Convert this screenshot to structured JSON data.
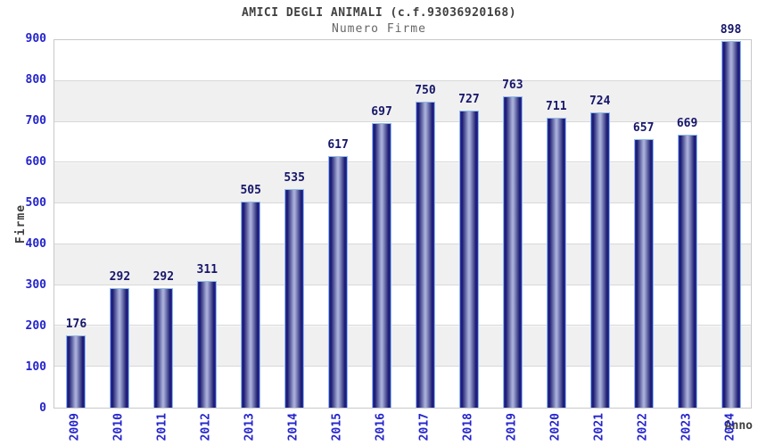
{
  "chart_data": {
    "type": "bar",
    "title": "AMICI DEGLI ANIMALI (c.f.93036920168)",
    "subtitle": "Numero Firme",
    "xlabel": "Anno",
    "ylabel": "Firme",
    "categories": [
      "2009",
      "2010",
      "2011",
      "2012",
      "2013",
      "2014",
      "2015",
      "2016",
      "2017",
      "2018",
      "2019",
      "2020",
      "2021",
      "2022",
      "2023",
      "2024"
    ],
    "values": [
      176,
      292,
      292,
      311,
      505,
      535,
      617,
      697,
      750,
      727,
      763,
      711,
      724,
      657,
      669,
      898
    ],
    "ylim": [
      0,
      900
    ],
    "ytick_step": 100,
    "grid": true,
    "legend_position": "none",
    "band_colors": [
      "#ffffff",
      "#f0f0f0"
    ],
    "colors": {
      "bar_edge": "#17176d",
      "bar_center": "#a7aed8",
      "bar_outline": "#8fbbe8",
      "axis_tick_label": "#2424cc",
      "value_label": "#16166a",
      "title": "#404040",
      "subtitle": "#666666",
      "gridline": "#d8d8d8"
    }
  }
}
